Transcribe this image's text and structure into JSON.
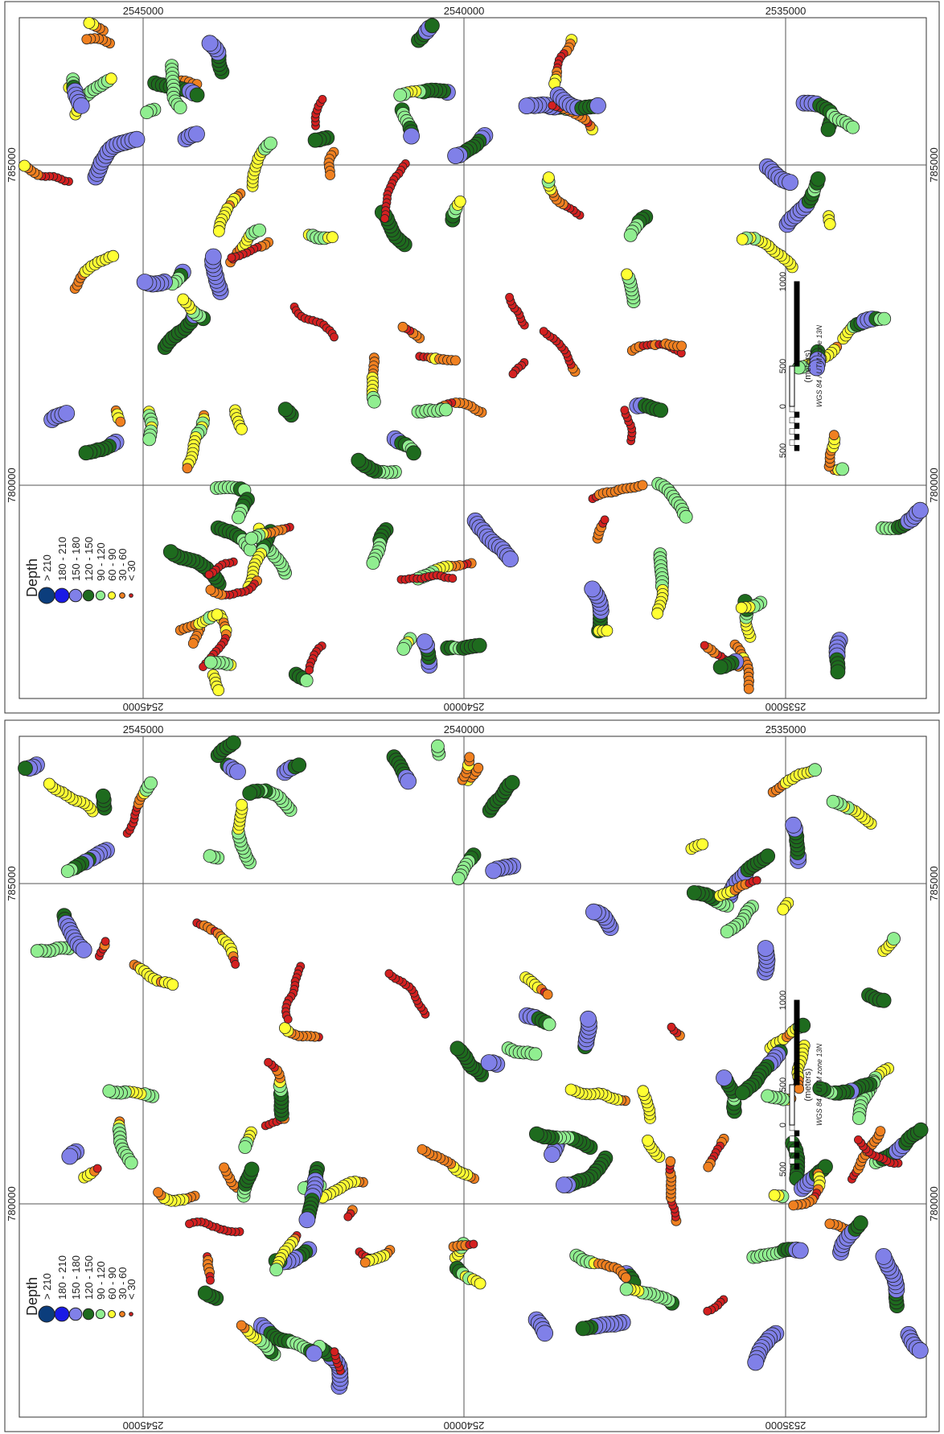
{
  "panels": [
    {
      "top_labels": [
        "2545000",
        "2540000",
        "2535000"
      ],
      "bottom_labels": [
        "2545000",
        "2540000",
        "2535000"
      ],
      "left_labels": [
        "785000",
        "780000"
      ],
      "right_labels": [
        "785000",
        "780000"
      ]
    },
    {
      "top_labels": [
        "2545000",
        "2540000",
        "2535000"
      ],
      "bottom_labels": [
        "2545000",
        "2540000",
        "2535000"
      ],
      "left_labels": [
        "785000",
        "780000"
      ],
      "right_labels": [
        "785000",
        "780000"
      ]
    }
  ],
  "legend": {
    "title": "Depth",
    "classes": [
      {
        "label": "> 210",
        "color": "#0b3d7c"
      },
      {
        "label": "180 - 210",
        "color": "#1a1ae6"
      },
      {
        "label": "150 - 180",
        "color": "#8080e8"
      },
      {
        "label": "120 - 150",
        "color": "#1e6b1e"
      },
      {
        "label": "90 - 120",
        "color": "#90ee90"
      },
      {
        "label": "60 - 90",
        "color": "#ffff33"
      },
      {
        "label": "30 - 60",
        "color": "#f08020"
      },
      {
        "label": "< 30",
        "color": "#d42020"
      }
    ]
  },
  "scale_bar": {
    "labels": [
      "500",
      "0",
      "500",
      "1000"
    ],
    "unit": "(meters)",
    "projection": "WGS 84 / UTM zone 13N"
  }
}
